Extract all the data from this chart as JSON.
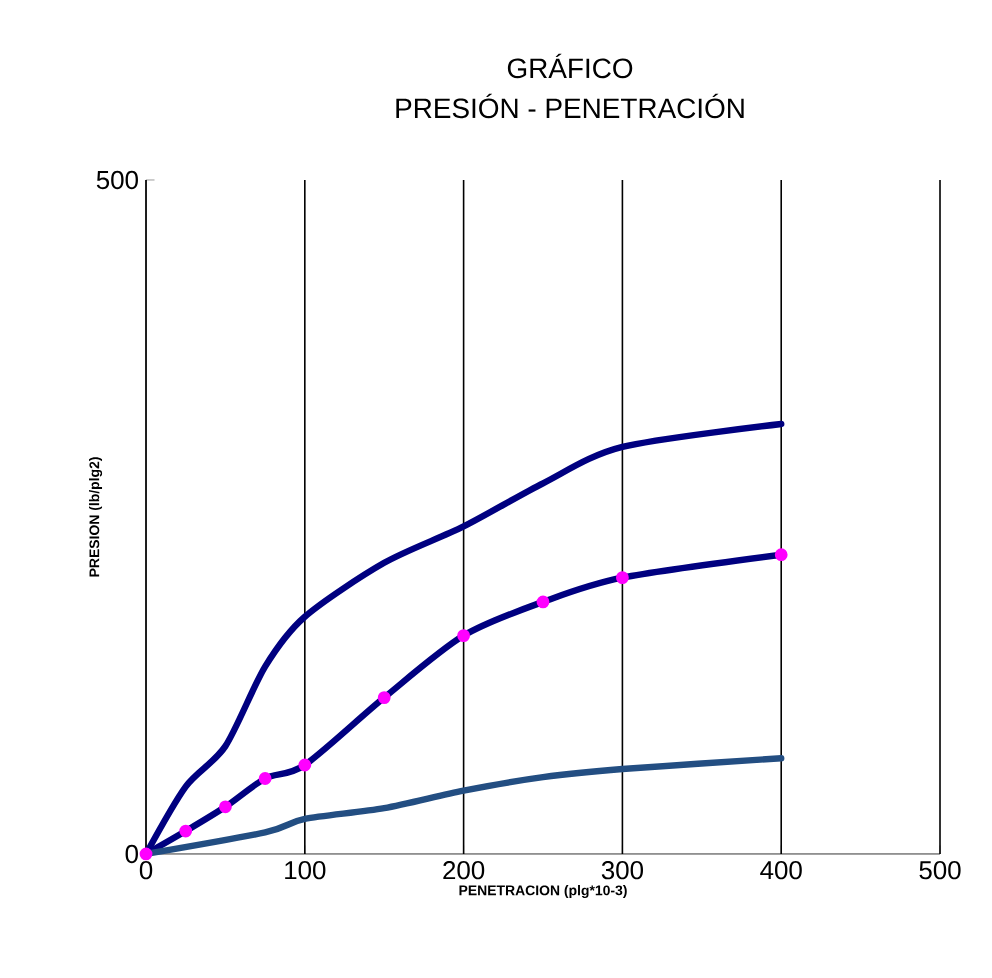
{
  "chart_data": {
    "type": "line",
    "title": "GRÁFICO",
    "subtitle": "PRESIÓN - PENETRACIÓN",
    "xlabel": "PENETRACION (plg*10-3)",
    "ylabel": "PRESION (lb/plg2)",
    "xlim": [
      0,
      500
    ],
    "ylim": [
      0,
      500
    ],
    "xticks": [
      0,
      100,
      200,
      300,
      400,
      500
    ],
    "yticks": [
      0,
      500
    ],
    "grid": "x",
    "line_style": "solid",
    "series": [
      {
        "color": "#000080",
        "marker": "none",
        "x": [
          0,
          25,
          50,
          75,
          100,
          150,
          200,
          250,
          300,
          400
        ],
        "values": [
          0,
          50,
          80,
          139,
          176,
          216,
          243,
          275,
          302,
          319
        ]
      },
      {
        "color": "#000080",
        "marker": "circle",
        "x": [
          0,
          25,
          50,
          75,
          100,
          150,
          200,
          250,
          300,
          400
        ],
        "values": [
          0,
          17,
          35,
          56,
          66,
          116,
          162,
          187,
          205,
          222
        ]
      },
      {
        "color": "#234e82",
        "marker": "none",
        "x": [
          0,
          75,
          100,
          150,
          200,
          250,
          300,
          400
        ],
        "values": [
          0,
          16,
          26,
          34,
          47,
          57,
          63,
          71
        ]
      }
    ]
  }
}
